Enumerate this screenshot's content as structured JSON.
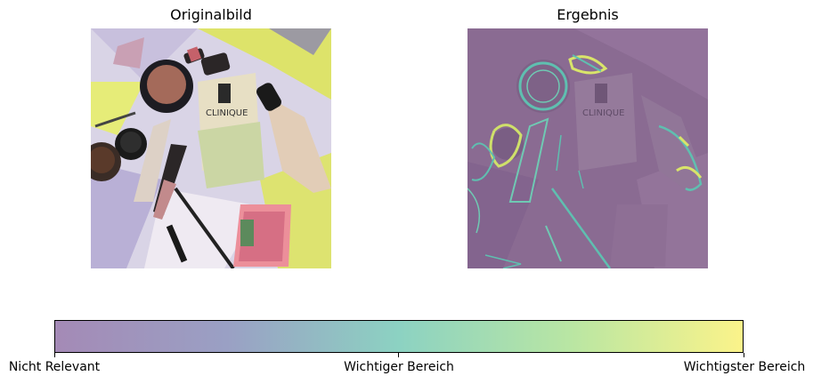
{
  "panels": {
    "left_title": "Originalbild",
    "right_title": "Ergebnis",
    "left_image_text": "CLINIQUE",
    "right_image_text": "CLINIQUE"
  },
  "colorbar": {
    "colors": [
      "#a48ab6",
      "#9aa0c4",
      "#8cd2c2",
      "#b9e6a3",
      "#fbf38a"
    ],
    "tick_labels": [
      "Nicht Relevant",
      "Wichtiger Bereich",
      "Wichtigster Bereich"
    ]
  }
}
